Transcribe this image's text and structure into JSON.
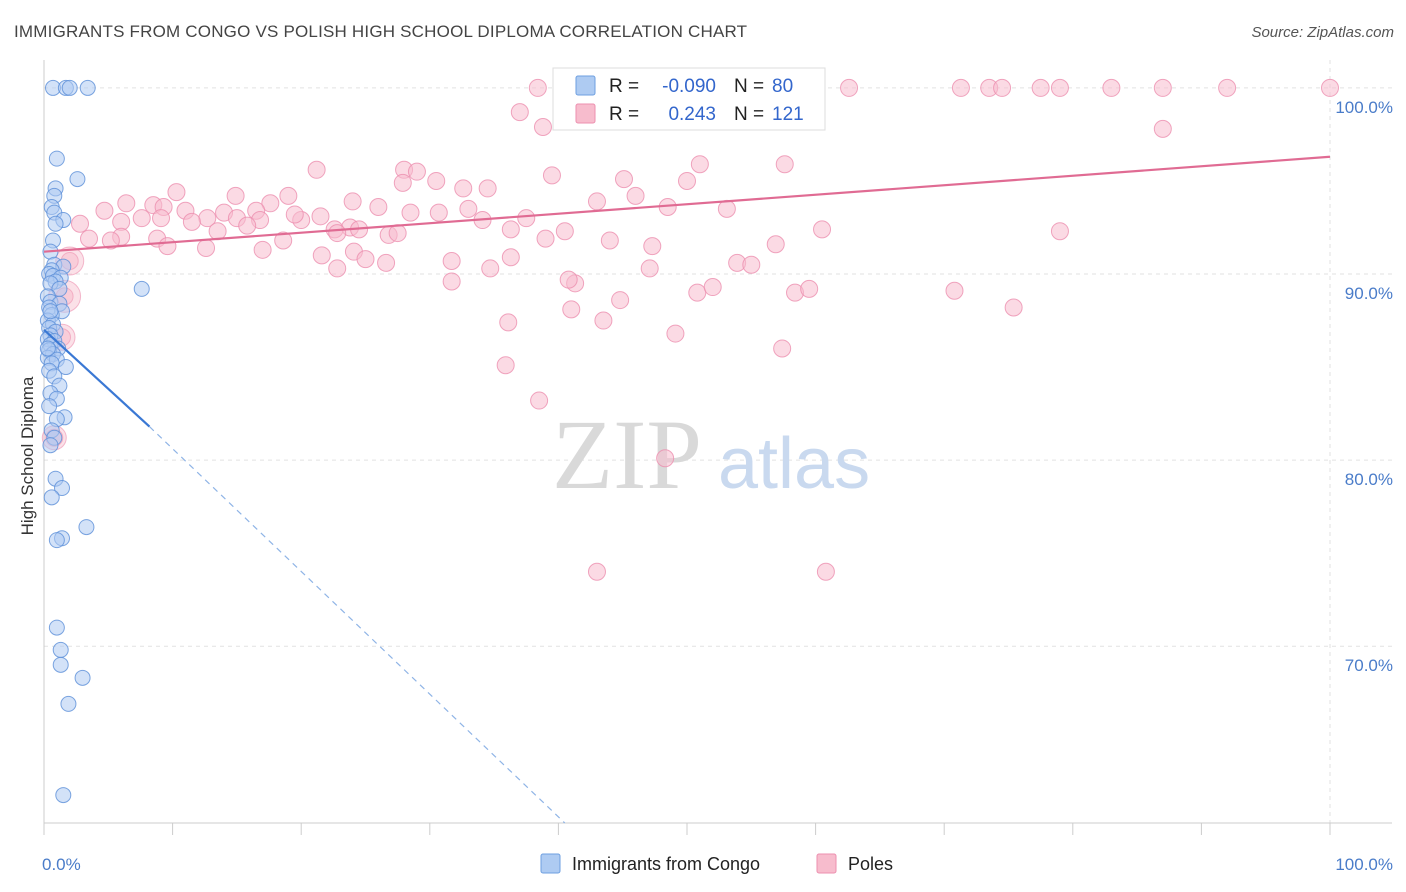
{
  "title": "IMMIGRANTS FROM CONGO VS POLISH HIGH SCHOOL DIPLOMA CORRELATION CHART",
  "source": "Source: ZipAtlas.com",
  "watermark": {
    "zip": "ZIP",
    "atlas": "atlas"
  },
  "legend": {
    "r_label": "R =",
    "n_label": "N =",
    "rows": [
      {
        "r": "-0.090",
        "n": "80",
        "color": "#aecbf2",
        "stroke": "#6e9fe0"
      },
      {
        "r": "0.243",
        "n": "121",
        "color": "#f7bccd",
        "stroke": "#ec8faf"
      }
    ]
  },
  "chart_data": {
    "type": "scatter",
    "title": "IMMIGRANTS FROM CONGO VS POLISH HIGH SCHOOL DIPLOMA CORRELATION CHART",
    "xlabel": "",
    "ylabel": "High School Diploma",
    "xlim": [
      0,
      100
    ],
    "ylim": [
      60.5,
      101.5
    ],
    "x_tick_labels": {
      "left": "0.0%",
      "right": "100.0%"
    },
    "y_ticks": [
      {
        "value": 100,
        "label": "100.0%"
      },
      {
        "value": 90,
        "label": "90.0%"
      },
      {
        "value": 80,
        "label": "80.0%"
      },
      {
        "value": 70,
        "label": "70.0%"
      }
    ],
    "grid": true,
    "legend_position": "top-center",
    "series": [
      {
        "name": "Immigrants from Congo",
        "color": "#aecbf2",
        "stroke": "#5b8fd8",
        "trend": {
          "x0": 0.0,
          "y0": 87.0,
          "x1": 8.2,
          "y1": 81.8,
          "dash_x1": 40.5,
          "dash_y1": 60.5,
          "color": "#3a78d4"
        },
        "points": [
          [
            0.7,
            100
          ],
          [
            1.7,
            100
          ],
          [
            2.0,
            100
          ],
          [
            3.4,
            100
          ],
          [
            1.0,
            96.2
          ],
          [
            2.6,
            95.1
          ],
          [
            0.9,
            94.6
          ],
          [
            0.8,
            94.2
          ],
          [
            0.6,
            93.6
          ],
          [
            0.8,
            93.3
          ],
          [
            1.5,
            92.9
          ],
          [
            0.9,
            92.7
          ],
          [
            0.7,
            91.8
          ],
          [
            0.5,
            91.2
          ],
          [
            0.8,
            90.5
          ],
          [
            1.5,
            90.4
          ],
          [
            0.6,
            90.2
          ],
          [
            0.4,
            90.0
          ],
          [
            0.7,
            89.9
          ],
          [
            1.3,
            89.8
          ],
          [
            0.9,
            89.6
          ],
          [
            0.5,
            89.5
          ],
          [
            1.2,
            89.2
          ],
          [
            7.6,
            89.2
          ],
          [
            0.3,
            88.8
          ],
          [
            0.5,
            88.5
          ],
          [
            1.2,
            88.4
          ],
          [
            0.4,
            88.2
          ],
          [
            1.4,
            88.0
          ],
          [
            0.6,
            87.8
          ],
          [
            0.3,
            87.5
          ],
          [
            0.7,
            87.3
          ],
          [
            0.4,
            87.1
          ],
          [
            0.9,
            86.9
          ],
          [
            0.5,
            86.7
          ],
          [
            0.3,
            86.5
          ],
          [
            0.8,
            86.4
          ],
          [
            0.5,
            86.2
          ],
          [
            1.1,
            86.0
          ],
          [
            0.4,
            85.9
          ],
          [
            0.7,
            85.7
          ],
          [
            0.3,
            85.5
          ],
          [
            1.0,
            85.4
          ],
          [
            0.6,
            85.2
          ],
          [
            1.7,
            85.0
          ],
          [
            0.4,
            84.8
          ],
          [
            0.8,
            84.5
          ],
          [
            1.2,
            84.0
          ],
          [
            0.5,
            83.6
          ],
          [
            1.0,
            83.3
          ],
          [
            0.4,
            82.9
          ],
          [
            1.6,
            82.3
          ],
          [
            1.0,
            82.2
          ],
          [
            0.6,
            81.6
          ],
          [
            0.8,
            81.2
          ],
          [
            0.5,
            80.8
          ],
          [
            0.9,
            79.0
          ],
          [
            1.4,
            78.5
          ],
          [
            0.6,
            78.0
          ],
          [
            3.3,
            76.4
          ],
          [
            1.4,
            75.8
          ],
          [
            1.0,
            75.7
          ],
          [
            1.0,
            71.0
          ],
          [
            1.3,
            69.8
          ],
          [
            1.3,
            69.0
          ],
          [
            3.0,
            68.3
          ],
          [
            1.9,
            66.9
          ],
          [
            1.5,
            62.0
          ],
          [
            0.5,
            88.0
          ],
          [
            0.3,
            86.0
          ]
        ]
      },
      {
        "name": "Poles",
        "color": "#f7bccd",
        "stroke": "#ec8faf",
        "trend": {
          "x0": 0.0,
          "y0": 91.2,
          "x1": 100.0,
          "y1": 96.3,
          "color": "#e06b93"
        },
        "points": [
          [
            38.4,
            100
          ],
          [
            47.8,
            100
          ],
          [
            50.0,
            100
          ],
          [
            52.6,
            100
          ],
          [
            53.7,
            100
          ],
          [
            62.6,
            100
          ],
          [
            71.3,
            100
          ],
          [
            73.5,
            100
          ],
          [
            74.5,
            100
          ],
          [
            77.5,
            100
          ],
          [
            79.0,
            100
          ],
          [
            83.0,
            100
          ],
          [
            87.0,
            100
          ],
          [
            92.0,
            100
          ],
          [
            100,
            100
          ],
          [
            37.0,
            98.7
          ],
          [
            38.8,
            97.9
          ],
          [
            87.0,
            97.8
          ],
          [
            51.0,
            95.9
          ],
          [
            21.2,
            95.6
          ],
          [
            28.0,
            95.6
          ],
          [
            29.0,
            95.5
          ],
          [
            39.5,
            95.3
          ],
          [
            45.1,
            95.1
          ],
          [
            30.5,
            95.0
          ],
          [
            50.0,
            95.0
          ],
          [
            27.9,
            94.9
          ],
          [
            32.6,
            94.6
          ],
          [
            34.5,
            94.6
          ],
          [
            10.3,
            94.4
          ],
          [
            14.9,
            94.2
          ],
          [
            19.0,
            94.2
          ],
          [
            46.0,
            94.2
          ],
          [
            24.0,
            93.9
          ],
          [
            43.0,
            93.9
          ],
          [
            17.6,
            93.8
          ],
          [
            8.5,
            93.7
          ],
          [
            9.3,
            93.6
          ],
          [
            26.0,
            93.6
          ],
          [
            53.1,
            93.5
          ],
          [
            4.7,
            93.4
          ],
          [
            11.0,
            93.4
          ],
          [
            16.5,
            93.4
          ],
          [
            14.0,
            93.3
          ],
          [
            28.5,
            93.3
          ],
          [
            30.7,
            93.3
          ],
          [
            21.5,
            93.1
          ],
          [
            7.6,
            93.0
          ],
          [
            9.1,
            93.0
          ],
          [
            12.7,
            93.0
          ],
          [
            15.0,
            93.0
          ],
          [
            16.8,
            92.9
          ],
          [
            34.1,
            92.9
          ],
          [
            6.0,
            92.8
          ],
          [
            2.8,
            92.7
          ],
          [
            23.8,
            92.5
          ],
          [
            22.6,
            92.4
          ],
          [
            24.5,
            92.4
          ],
          [
            36.3,
            92.4
          ],
          [
            40.5,
            92.3
          ],
          [
            6.0,
            92.0
          ],
          [
            8.8,
            91.9
          ],
          [
            5.2,
            91.8
          ],
          [
            13.5,
            92.3
          ],
          [
            22.8,
            92.2
          ],
          [
            26.8,
            92.1
          ],
          [
            39.0,
            91.9
          ],
          [
            44.0,
            91.8
          ],
          [
            56.9,
            91.6
          ],
          [
            47.3,
            91.5
          ],
          [
            9.6,
            91.5
          ],
          [
            12.6,
            91.4
          ],
          [
            17.0,
            91.3
          ],
          [
            24.1,
            91.2
          ],
          [
            21.6,
            91.0
          ],
          [
            36.3,
            90.9
          ],
          [
            25.0,
            90.8
          ],
          [
            31.7,
            90.7
          ],
          [
            26.6,
            90.6
          ],
          [
            53.9,
            90.6
          ],
          [
            55.0,
            90.5
          ],
          [
            22.8,
            90.3
          ],
          [
            34.7,
            90.3
          ],
          [
            47.1,
            90.3
          ],
          [
            79.0,
            92.3
          ],
          [
            70.8,
            89.1
          ],
          [
            41.3,
            89.5
          ],
          [
            40.8,
            89.7
          ],
          [
            31.7,
            89.6
          ],
          [
            58.4,
            89.0
          ],
          [
            59.5,
            89.2
          ],
          [
            50.8,
            89.0
          ],
          [
            41.0,
            88.1
          ],
          [
            75.4,
            88.2
          ],
          [
            36.1,
            87.4
          ],
          [
            49.1,
            86.8
          ],
          [
            57.4,
            86.0
          ],
          [
            35.9,
            85.1
          ],
          [
            38.5,
            83.2
          ],
          [
            48.3,
            80.1
          ],
          [
            43.0,
            74.0
          ],
          [
            60.8,
            74.0
          ],
          [
            2.0,
            90.7
          ],
          [
            1.6,
            88.8
          ],
          [
            1.4,
            86.6
          ],
          [
            0.8,
            81.2
          ],
          [
            3.5,
            91.9
          ],
          [
            6.4,
            93.8
          ],
          [
            18.6,
            91.8
          ],
          [
            20.0,
            92.9
          ],
          [
            44.8,
            88.6
          ],
          [
            43.5,
            87.5
          ],
          [
            57.6,
            95.9
          ],
          [
            52.0,
            89.3
          ],
          [
            60.5,
            92.4
          ],
          [
            48.5,
            93.6
          ],
          [
            33.0,
            93.5
          ],
          [
            27.5,
            92.2
          ],
          [
            19.5,
            93.2
          ],
          [
            15.8,
            92.6
          ],
          [
            11.5,
            92.8
          ],
          [
            37.5,
            93.0
          ]
        ]
      }
    ]
  },
  "bottom_legend": [
    {
      "label": "Immigrants from Congo",
      "color": "#aecbf2",
      "stroke": "#6e9fe0"
    },
    {
      "label": "Poles",
      "color": "#f7bccd",
      "stroke": "#ec8faf"
    }
  ]
}
